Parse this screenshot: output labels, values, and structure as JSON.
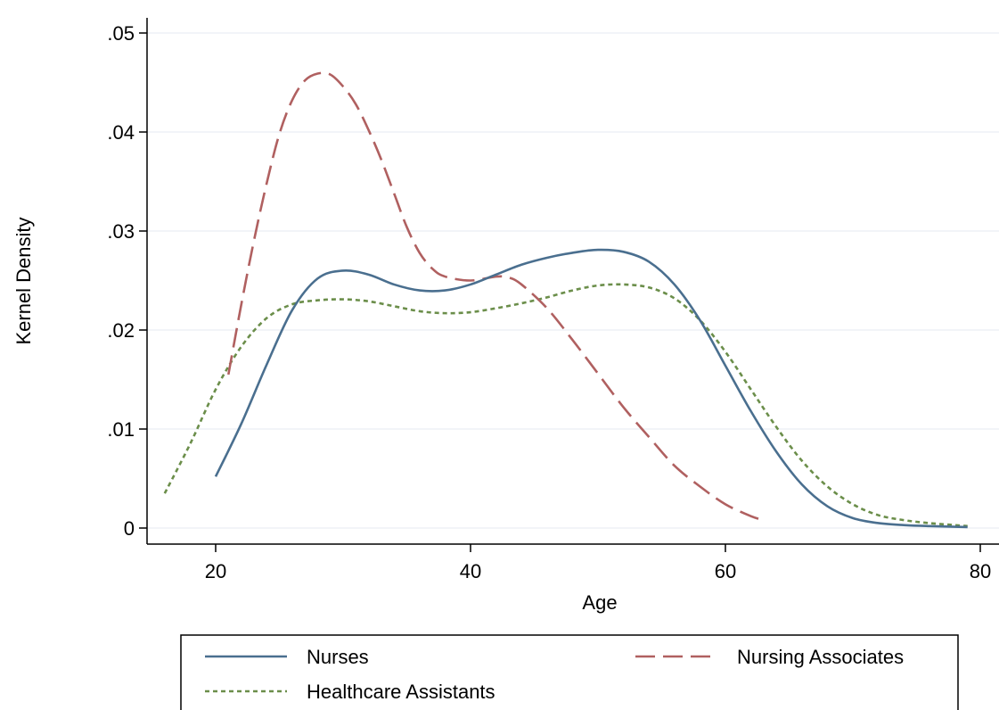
{
  "chart_data": {
    "type": "line",
    "title": "",
    "xlabel": "Age",
    "ylabel": "Kernel Density",
    "xlim": [
      16,
      80
    ],
    "ylim": [
      0,
      0.05
    ],
    "x_ticks": [
      20,
      40,
      60,
      80
    ],
    "x_tick_labels": [
      "20",
      "40",
      "60",
      "80"
    ],
    "y_ticks": [
      0,
      0.01,
      0.02,
      0.03,
      0.04,
      0.05
    ],
    "y_tick_labels": [
      "0",
      ".01",
      ".02",
      ".03",
      ".04",
      ".05"
    ],
    "grid": "horizontal",
    "legend_position": "bottom",
    "series": [
      {
        "name": "Nurses",
        "color": "#4a6f8f",
        "dash": "solid",
        "points": [
          [
            20,
            0.0052
          ],
          [
            22,
            0.0105
          ],
          [
            24,
            0.0165
          ],
          [
            26,
            0.022
          ],
          [
            28,
            0.0252
          ],
          [
            30,
            0.026
          ],
          [
            32,
            0.0256
          ],
          [
            34,
            0.0246
          ],
          [
            36,
            0.024
          ],
          [
            38,
            0.024
          ],
          [
            40,
            0.0246
          ],
          [
            42,
            0.0256
          ],
          [
            44,
            0.0266
          ],
          [
            46,
            0.0273
          ],
          [
            48,
            0.0278
          ],
          [
            50,
            0.0281
          ],
          [
            52,
            0.0279
          ],
          [
            54,
            0.0269
          ],
          [
            56,
            0.0246
          ],
          [
            58,
            0.021
          ],
          [
            60,
            0.0164
          ],
          [
            62,
            0.0118
          ],
          [
            64,
            0.0077
          ],
          [
            66,
            0.0044
          ],
          [
            68,
            0.0022
          ],
          [
            70,
            0.001
          ],
          [
            72,
            0.0005
          ],
          [
            74,
            0.0003
          ],
          [
            76,
            0.0002
          ],
          [
            79,
            0.0001
          ]
        ]
      },
      {
        "name": "Nursing Associates",
        "color": "#b06060",
        "dash": "long-dash",
        "points": [
          [
            21,
            0.0155
          ],
          [
            22,
            0.0225
          ],
          [
            23,
            0.029
          ],
          [
            24,
            0.0348
          ],
          [
            25,
            0.0398
          ],
          [
            26,
            0.0432
          ],
          [
            27,
            0.0452
          ],
          [
            28,
            0.0459
          ],
          [
            29,
            0.0458
          ],
          [
            30,
            0.0446
          ],
          [
            31,
            0.0428
          ],
          [
            32,
            0.0402
          ],
          [
            33,
            0.0372
          ],
          [
            34,
            0.0338
          ],
          [
            35,
            0.0304
          ],
          [
            36,
            0.0278
          ],
          [
            37,
            0.0262
          ],
          [
            38,
            0.0254
          ],
          [
            40,
            0.025
          ],
          [
            42,
            0.0254
          ],
          [
            43,
            0.0253
          ],
          [
            44,
            0.0246
          ],
          [
            46,
            0.0222
          ],
          [
            48,
            0.019
          ],
          [
            50,
            0.0156
          ],
          [
            52,
            0.0122
          ],
          [
            54,
            0.0092
          ],
          [
            56,
            0.0063
          ],
          [
            58,
            0.0042
          ],
          [
            60,
            0.0024
          ],
          [
            62,
            0.0012
          ],
          [
            63,
            0.0008
          ]
        ]
      },
      {
        "name": "Healthcare Assistants",
        "color": "#6b8e4a",
        "dash": "dotted",
        "points": [
          [
            16,
            0.0035
          ],
          [
            18,
            0.0085
          ],
          [
            20,
            0.014
          ],
          [
            22,
            0.0183
          ],
          [
            24,
            0.0212
          ],
          [
            26,
            0.0226
          ],
          [
            28,
            0.023
          ],
          [
            30,
            0.0231
          ],
          [
            32,
            0.0229
          ],
          [
            34,
            0.0224
          ],
          [
            36,
            0.0219
          ],
          [
            38,
            0.0217
          ],
          [
            40,
            0.0218
          ],
          [
            42,
            0.0222
          ],
          [
            44,
            0.0227
          ],
          [
            46,
            0.0233
          ],
          [
            48,
            0.024
          ],
          [
            50,
            0.0245
          ],
          [
            52,
            0.0246
          ],
          [
            54,
            0.0243
          ],
          [
            56,
            0.0232
          ],
          [
            58,
            0.021
          ],
          [
            60,
            0.0178
          ],
          [
            62,
            0.014
          ],
          [
            64,
            0.0102
          ],
          [
            66,
            0.0068
          ],
          [
            68,
            0.0042
          ],
          [
            70,
            0.0024
          ],
          [
            72,
            0.0013
          ],
          [
            74,
            0.0008
          ],
          [
            76,
            0.0005
          ],
          [
            79,
            0.0002
          ]
        ]
      }
    ]
  }
}
